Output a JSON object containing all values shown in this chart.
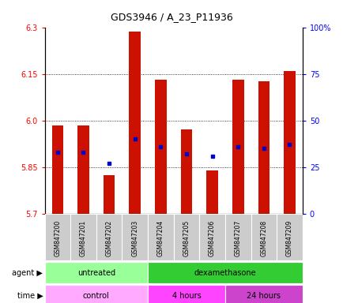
{
  "title": "GDS3946 / A_23_P11936",
  "samples": [
    "GSM847200",
    "GSM847201",
    "GSM847202",
    "GSM847203",
    "GSM847204",
    "GSM847205",
    "GSM847206",
    "GSM847207",
    "GSM847208",
    "GSM847209"
  ],
  "transformed_count": [
    5.985,
    5.985,
    5.825,
    6.285,
    6.13,
    5.97,
    5.84,
    6.13,
    6.125,
    6.16
  ],
  "percentile_rank": [
    33,
    33,
    27,
    40,
    36,
    32,
    31,
    36,
    35,
    37
  ],
  "ylim_left": [
    5.7,
    6.3
  ],
  "yticks_left": [
    5.7,
    5.85,
    6.0,
    6.15,
    6.3
  ],
  "yticks_right": [
    0,
    25,
    50,
    75,
    100
  ],
  "bar_color": "#cc1100",
  "dot_color": "#0000cc",
  "baseline": 5.7,
  "agent_labels": [
    {
      "text": "untreated",
      "start": 0,
      "end": 3,
      "color": "#99ff99"
    },
    {
      "text": "dexamethasone",
      "start": 4,
      "end": 9,
      "color": "#33cc33"
    }
  ],
  "time_labels": [
    {
      "text": "control",
      "start": 0,
      "end": 3,
      "color": "#ffaaff"
    },
    {
      "text": "4 hours",
      "start": 4,
      "end": 6,
      "color": "#ff44ff"
    },
    {
      "text": "24 hours",
      "start": 7,
      "end": 9,
      "color": "#cc44cc"
    }
  ],
  "bg_color": "#ffffff",
  "tick_area_color": "#cccccc"
}
